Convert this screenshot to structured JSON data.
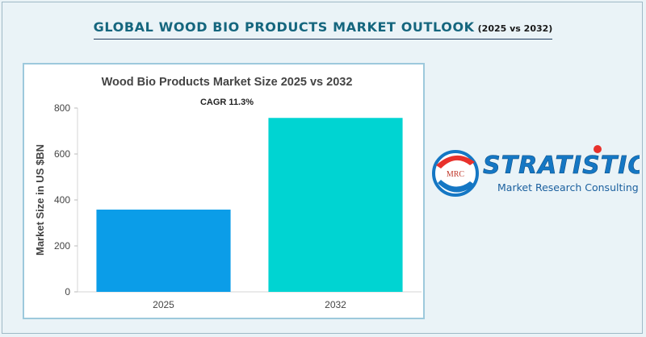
{
  "header": {
    "title": "GLOBAL WOOD BIO PRODUCTS MARKET OUTLOOK",
    "subtitle": "(2025 vs 2032)"
  },
  "chart_data": {
    "type": "bar",
    "title": "Wood Bio Products Market Size 2025 vs 2032",
    "annotation": "CAGR 11.3%",
    "xlabel": "",
    "ylabel": "Market Size in US $BN",
    "categories": [
      "2025",
      "2032"
    ],
    "values": [
      358,
      757
    ],
    "ylim": [
      0,
      800
    ],
    "yticks": [
      0,
      200,
      400,
      600,
      800
    ],
    "bar_colors": [
      "#0b9de8",
      "#00d4d2"
    ],
    "grid": false,
    "legend": "none"
  },
  "logo": {
    "brand": "STRATISTICS",
    "tagline": "Market Research Consulting",
    "badge": "MRC",
    "brand_color": "#1577c4",
    "accent_color": "#e8312c"
  }
}
